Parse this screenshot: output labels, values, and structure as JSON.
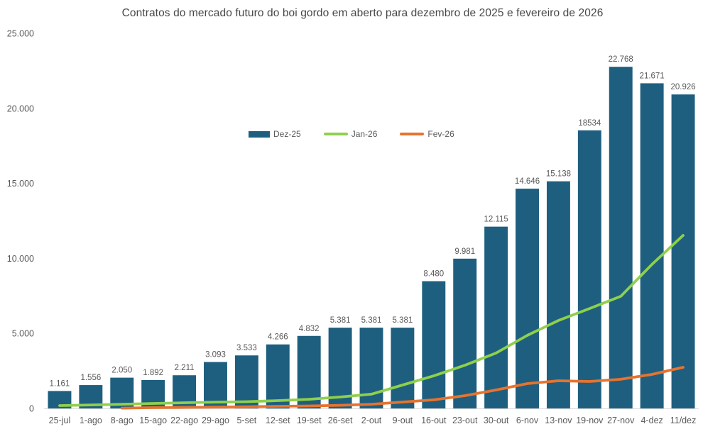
{
  "chart_data": {
    "type": "bar",
    "title": "Contratos do mercado futuro do boi gordo em aberto para dezembro de 2025 e fevereiro de 2026",
    "categories": [
      "25-jul",
      "1-ago",
      "8-ago",
      "15-ago",
      "22-ago",
      "29-ago",
      "5-set",
      "12-set",
      "19-set",
      "26-set",
      "2-out",
      "9-out",
      "16-out",
      "23-out",
      "30-out",
      "6-nov",
      "13-nov",
      "19-nov",
      "27-nov",
      "4-dez",
      "11/dez"
    ],
    "series": [
      {
        "name": "Dez-25",
        "type": "bar",
        "color": "#1e5f80",
        "values": [
          1161,
          1556,
          2050,
          1892,
          2211,
          3093,
          3533,
          4266,
          4832,
          5381,
          5381,
          5381,
          8480,
          9981,
          12115,
          14646,
          15138,
          18534,
          22768,
          21671,
          20926
        ],
        "labels": [
          "1.161",
          "1.556",
          "2.050",
          "1.892",
          "2.211",
          "3.093",
          "3.533",
          "4.266",
          "4.832",
          "5.381",
          "5.381",
          "5.381",
          "8.480",
          "9.981",
          "12.115",
          "14.646",
          "15.138",
          "18534",
          "22.768",
          "21.671",
          "20.926"
        ]
      },
      {
        "name": "Jan-26",
        "type": "line",
        "color": "#8fd04c",
        "values": [
          190,
          230,
          280,
          330,
          380,
          420,
          450,
          520,
          610,
          760,
          950,
          1560,
          2170,
          2880,
          3690,
          4870,
          5860,
          6660,
          7470,
          9600,
          11530
        ]
      },
      {
        "name": "Fev-26",
        "type": "line",
        "color": "#e7732e",
        "values": [
          null,
          null,
          20,
          50,
          70,
          90,
          110,
          140,
          165,
          210,
          280,
          425,
          570,
          850,
          1230,
          1655,
          1845,
          1795,
          1940,
          2270,
          2740
        ]
      }
    ],
    "y_axis": {
      "max": 25000,
      "ticks": [
        0,
        5000,
        10000,
        15000,
        20000,
        25000
      ],
      "tick_labels": [
        "0",
        "5.000",
        "10.000",
        "15.000",
        "20.000",
        "25.000"
      ]
    },
    "xlabel": "",
    "ylabel": "",
    "grid": false,
    "legend_position": "inside-top-center",
    "text_color": "#595959",
    "axis_line_color": "#d9d9d9"
  }
}
